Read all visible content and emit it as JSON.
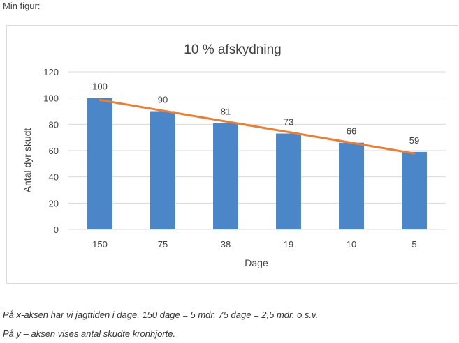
{
  "page": {
    "label": "Min figur:",
    "caption_x": "På x-aksen har vi jagttiden i dage. 150 dage = 5 mdr. 75 dage = 2,5 mdr. o.s.v.",
    "caption_y": "På y – aksen vises antal skudte kronhjorte."
  },
  "colors": {
    "bar": "#4a86c8",
    "trend": "#ed7d31",
    "grid": "#d9d9d9",
    "text": "#404040"
  },
  "chart_data": {
    "type": "bar",
    "title": "10 % afskydning",
    "xlabel": "Dage",
    "ylabel": "Antal dyr skudt",
    "categories": [
      "150",
      "75",
      "38",
      "19",
      "10",
      "5"
    ],
    "values": [
      100,
      90,
      81,
      73,
      66,
      59
    ],
    "data_labels": [
      "100",
      "90",
      "81",
      "73",
      "66",
      "59"
    ],
    "trendline": "linear",
    "ylim": [
      0,
      120
    ],
    "yticks": [
      "0",
      "20",
      "40",
      "60",
      "80",
      "100",
      "120"
    ],
    "grid": true,
    "legend": "none"
  }
}
